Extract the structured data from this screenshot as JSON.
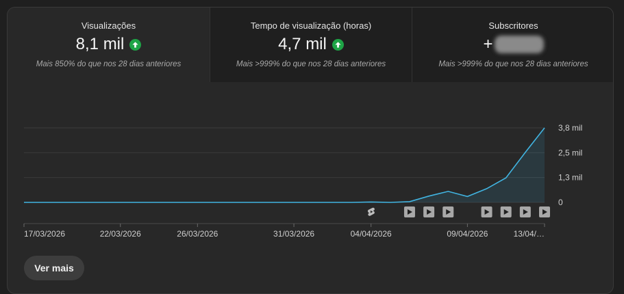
{
  "metrics": [
    {
      "title": "Visualizações",
      "value": "8,1 mil",
      "trend_icon": "arrow-up-icon",
      "subtitle": "Mais 850% do que nos 28 dias anteriores"
    },
    {
      "title": "Tempo de visualização (horas)",
      "value": "4,7 mil",
      "trend_icon": "arrow-up-icon",
      "subtitle": "Mais >999% do que nos 28 dias anteriores"
    },
    {
      "title": "Subscritores",
      "value": "+",
      "value_redacted": true,
      "subtitle": "Mais >999% do que nos 28 dias anteriores"
    }
  ],
  "colors": {
    "accent_line": "#41b4e1",
    "trend_up": "#1ea446"
  },
  "chart_data": {
    "type": "area",
    "x": [
      "17/03/2026",
      "18/03/2026",
      "19/03/2026",
      "20/03/2026",
      "21/03/2026",
      "22/03/2026",
      "23/03/2026",
      "24/03/2026",
      "25/03/2026",
      "26/03/2026",
      "27/03/2026",
      "28/03/2026",
      "29/03/2026",
      "30/03/2026",
      "31/03/2026",
      "01/04/2026",
      "02/04/2026",
      "03/04/2026",
      "04/04/2026",
      "05/04/2026",
      "06/04/2026",
      "07/04/2026",
      "08/04/2026",
      "09/04/2026",
      "10/04/2026",
      "11/04/2026",
      "12/04/2026",
      "13/04/2026"
    ],
    "series": [
      {
        "values": [
          0,
          0,
          0,
          0,
          0,
          0,
          0,
          0,
          0,
          0,
          0,
          0,
          0,
          0,
          0,
          0,
          0,
          0,
          20,
          0,
          40,
          320,
          560,
          300,
          700,
          1250,
          2550,
          3800
        ]
      }
    ],
    "x_tick_labels": [
      {
        "label": "17/03/2026",
        "index": 0
      },
      {
        "label": "22/03/2026",
        "index": 5
      },
      {
        "label": "26/03/2026",
        "index": 9
      },
      {
        "label": "31/03/2026",
        "index": 14
      },
      {
        "label": "04/04/2026",
        "index": 18
      },
      {
        "label": "09/04/2026",
        "index": 23
      },
      {
        "label": "13/04/…",
        "index": 27
      }
    ],
    "y_ticks": [
      {
        "label": "0",
        "value": 0
      },
      {
        "label": "1,3 mil",
        "value": 1267
      },
      {
        "label": "2,5 mil",
        "value": 2533
      },
      {
        "label": "3,8 mil",
        "value": 3800
      }
    ],
    "ylim": [
      0,
      3800
    ],
    "grid": true,
    "content_markers": [
      {
        "index": 18,
        "kind": "shorts-icon"
      },
      {
        "index": 20,
        "kind": "play-icon"
      },
      {
        "index": 21,
        "kind": "play-icon"
      },
      {
        "index": 22,
        "kind": "play-icon"
      },
      {
        "index": 24,
        "kind": "play-icon"
      },
      {
        "index": 25,
        "kind": "play-icon"
      },
      {
        "index": 26,
        "kind": "play-icon"
      },
      {
        "index": 27,
        "kind": "play-icon"
      }
    ]
  },
  "actions": {
    "see_more": "Ver mais"
  }
}
